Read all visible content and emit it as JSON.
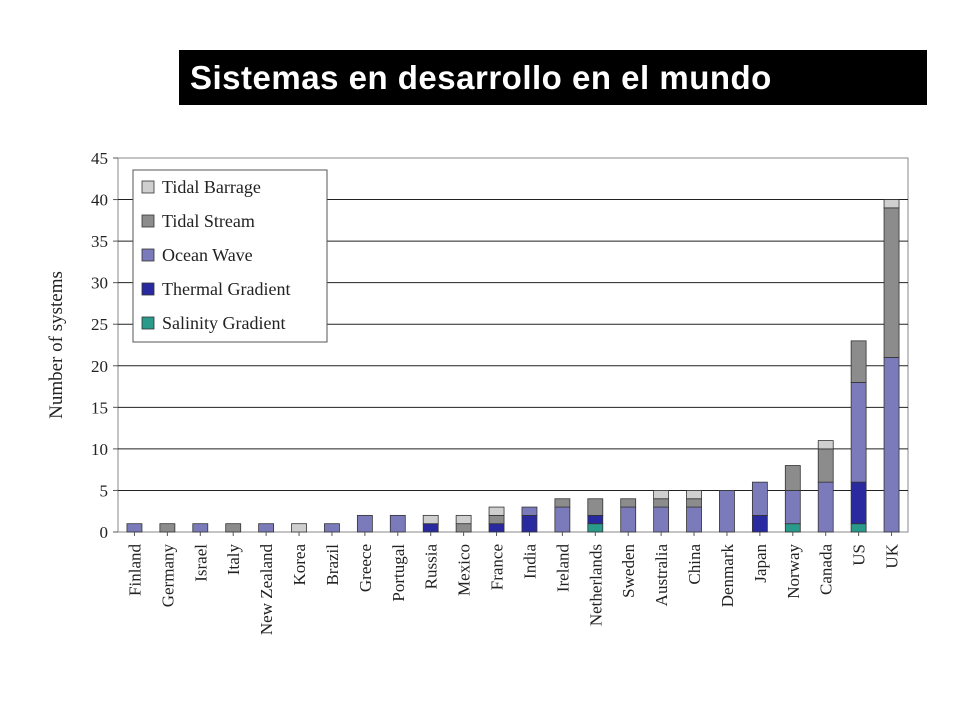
{
  "slide": {
    "title": "Sistemas en desarrollo en el mundo"
  },
  "chart_data": {
    "type": "bar",
    "stacked": true,
    "ylabel": "Number of systems",
    "xlabel": "",
    "ylim": [
      0,
      45
    ],
    "yticks": [
      0,
      5,
      10,
      15,
      20,
      25,
      30,
      35,
      40,
      45
    ],
    "grid": true,
    "legend_position": "top-left",
    "categories": [
      "Finland",
      "Germany",
      "Israel",
      "Italy",
      "New Zealand",
      "Korea",
      "Brazil",
      "Greece",
      "Portugal",
      "Russia",
      "Mexico",
      "France",
      "India",
      "Ireland",
      "Netherlands",
      "Sweden",
      "Australia",
      "China",
      "Denmark",
      "Japan",
      "Norway",
      "Canada",
      "US",
      "UK"
    ],
    "series": [
      {
        "name": "Salinity Gradient",
        "color": "#2a9a8a",
        "values": [
          0,
          0,
          0,
          0,
          0,
          0,
          0,
          0,
          0,
          0,
          0,
          0,
          0,
          0,
          1,
          0,
          0,
          0,
          0,
          0,
          1,
          0,
          1,
          0
        ]
      },
      {
        "name": "Thermal Gradient",
        "color": "#2a2aa0",
        "values": [
          0,
          0,
          0,
          0,
          0,
          0,
          0,
          0,
          0,
          1,
          0,
          1,
          2,
          0,
          1,
          0,
          0,
          0,
          0,
          2,
          0,
          0,
          5,
          0
        ]
      },
      {
        "name": "Ocean Wave",
        "color": "#7b7bbb",
        "values": [
          1,
          0,
          1,
          0,
          1,
          0,
          1,
          2,
          2,
          0,
          0,
          0,
          1,
          3,
          0,
          3,
          3,
          3,
          5,
          4,
          4,
          6,
          12,
          21
        ]
      },
      {
        "name": "Tidal Stream",
        "color": "#8c8c8c",
        "values": [
          0,
          1,
          0,
          1,
          0,
          0,
          0,
          0,
          0,
          0,
          1,
          1,
          0,
          1,
          2,
          1,
          1,
          1,
          0,
          0,
          3,
          4,
          5,
          18
        ]
      },
      {
        "name": "Tidal Barrage",
        "color": "#cfcfcf",
        "values": [
          0,
          0,
          0,
          0,
          0,
          1,
          0,
          0,
          0,
          1,
          1,
          1,
          0,
          0,
          0,
          0,
          1,
          1,
          0,
          0,
          0,
          1,
          0,
          1
        ]
      }
    ],
    "legend_order": [
      "Tidal Barrage",
      "Tidal Stream",
      "Ocean Wave",
      "Thermal Gradient",
      "Salinity Gradient"
    ]
  }
}
